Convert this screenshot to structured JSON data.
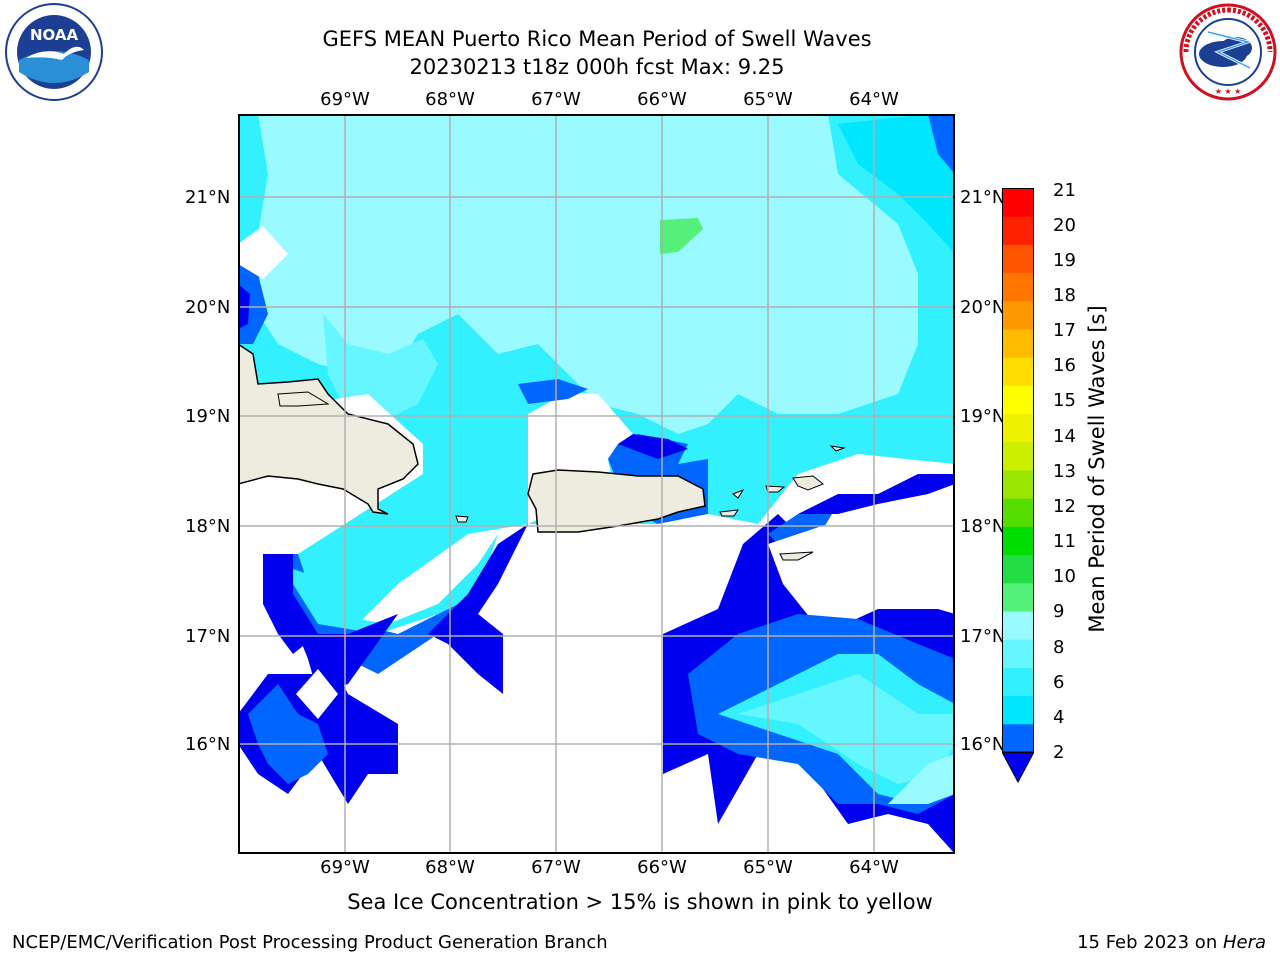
{
  "header": {
    "title_line1": "GEFS MEAN Puerto Rico Mean Period of Swell Waves",
    "title_line2": "20230213 t18z 000h fcst   Max: 9.25"
  },
  "logos": {
    "left": {
      "icon": "noaa-logo",
      "text": "NOAA"
    },
    "right": {
      "icon": "nws-logo",
      "text": "NATIONAL WEATHER SERVICE"
    }
  },
  "map": {
    "lon_labels": [
      "69°W",
      "68°W",
      "67°W",
      "66°W",
      "65°W",
      "64°W"
    ],
    "lat_labels": [
      "21°N",
      "20°N",
      "19°N",
      "18°N",
      "17°N",
      "16°N"
    ],
    "grid": true,
    "colors": {
      "land": "#eeecdf",
      "grid": "#b0b0b0"
    }
  },
  "colorbar": {
    "label": "Mean Period of Swell Waves [s]",
    "ticks": [
      "21",
      "20",
      "19",
      "18",
      "17",
      "16",
      "15",
      "14",
      "13",
      "12",
      "11",
      "10",
      "9",
      "8",
      "6",
      "4",
      "2"
    ],
    "colors_bottom_to_top": [
      "#0066ff",
      "#00e6ff",
      "#33f0ff",
      "#66f6ff",
      "#99faff",
      "#55f07a",
      "#22dd44",
      "#00dd00",
      "#55dd00",
      "#99e600",
      "#ccee00",
      "#eef200",
      "#ffff00",
      "#ffdd00",
      "#ffbb00",
      "#ff9900",
      "#ff7700",
      "#ff5500",
      "#ff2200",
      "#ff0000"
    ],
    "extend_color": "#0000ee"
  },
  "caption": "Sea Ice Concentration > 15% is shown in pink to yellow",
  "footer": {
    "left": "NCEP/EMC/Verification Post Processing Product Generation Branch",
    "date": "15 Feb 2023 on ",
    "machine": "Hera"
  }
}
